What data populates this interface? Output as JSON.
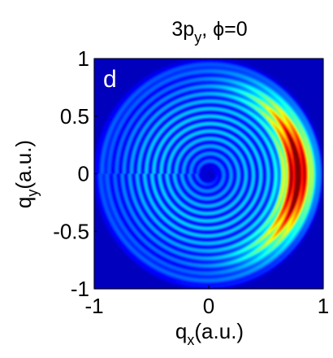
{
  "chart_data": {
    "type": "heatmap",
    "title": {
      "main": "3p",
      "sub": "y",
      "rest": ", ϕ=0"
    },
    "panel_label": "d",
    "xlabel": {
      "main": "q",
      "sub": "x",
      "rest": "(a.u.)"
    },
    "ylabel": {
      "main": "q",
      "sub": "y",
      "rest": "(a.u.)"
    },
    "xlim": [
      -1,
      1
    ],
    "ylim": [
      -1,
      1
    ],
    "xticks": [
      -1,
      0,
      1
    ],
    "xtick_labels": [
      "-1",
      "0",
      "1"
    ],
    "yticks": [
      1,
      0.5,
      0,
      -0.5,
      -1
    ],
    "ytick_labels": [
      "1",
      "0.5",
      "0",
      "-0.5",
      "-1"
    ],
    "colormap": "jet",
    "grid": false,
    "features": [
      {
        "name": "bright crescent",
        "q_x": 0.78,
        "q_y": 0.02,
        "level": 1.0
      },
      {
        "name": "central hole",
        "q_x": 0.0,
        "q_y": 0.0,
        "radius": 0.1
      },
      {
        "name": "outer fade radius",
        "radius": 0.97
      },
      {
        "name": "interference ring spacing",
        "value": 0.065
      }
    ]
  }
}
